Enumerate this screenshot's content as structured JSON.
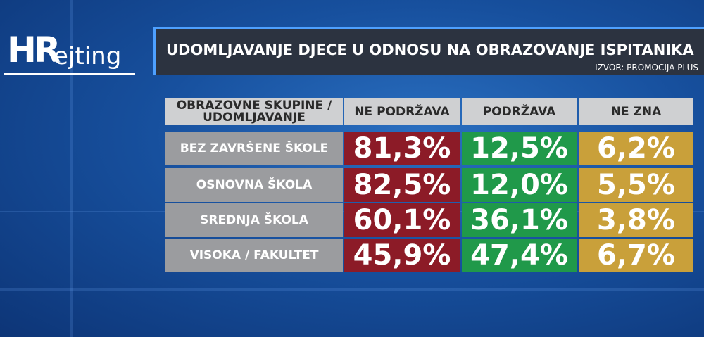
{
  "logo": {
    "prefix": "HR",
    "suffix": "ejting"
  },
  "header": {
    "title": "UDOMLJAVANJE DJECE U ODNOSU NA OBRAZOVANJE ISPITANIKA",
    "source": "IZVOR: PROMOCIJA PLUS"
  },
  "table": {
    "columns": [
      "OBRAZOVNE SKUPINE / UDOMLJAVANJE",
      "NE PODRŽAVA",
      "PODRŽAVA",
      "NE ZNA"
    ],
    "rows": [
      [
        "BEZ ZAVRŠENE ŠKOLE",
        "81,3%",
        "12,5%",
        "6,2%"
      ],
      [
        "OSNOVNA ŠKOLA",
        "82,5%",
        "12,0%",
        "5,5%"
      ],
      [
        "SREDNJA ŠKOLA",
        "60,1%",
        "36,1%",
        "3,8%"
      ],
      [
        "VISOKA / FAKULTET",
        "45,9%",
        "47,4%",
        "6,7%"
      ]
    ]
  }
}
